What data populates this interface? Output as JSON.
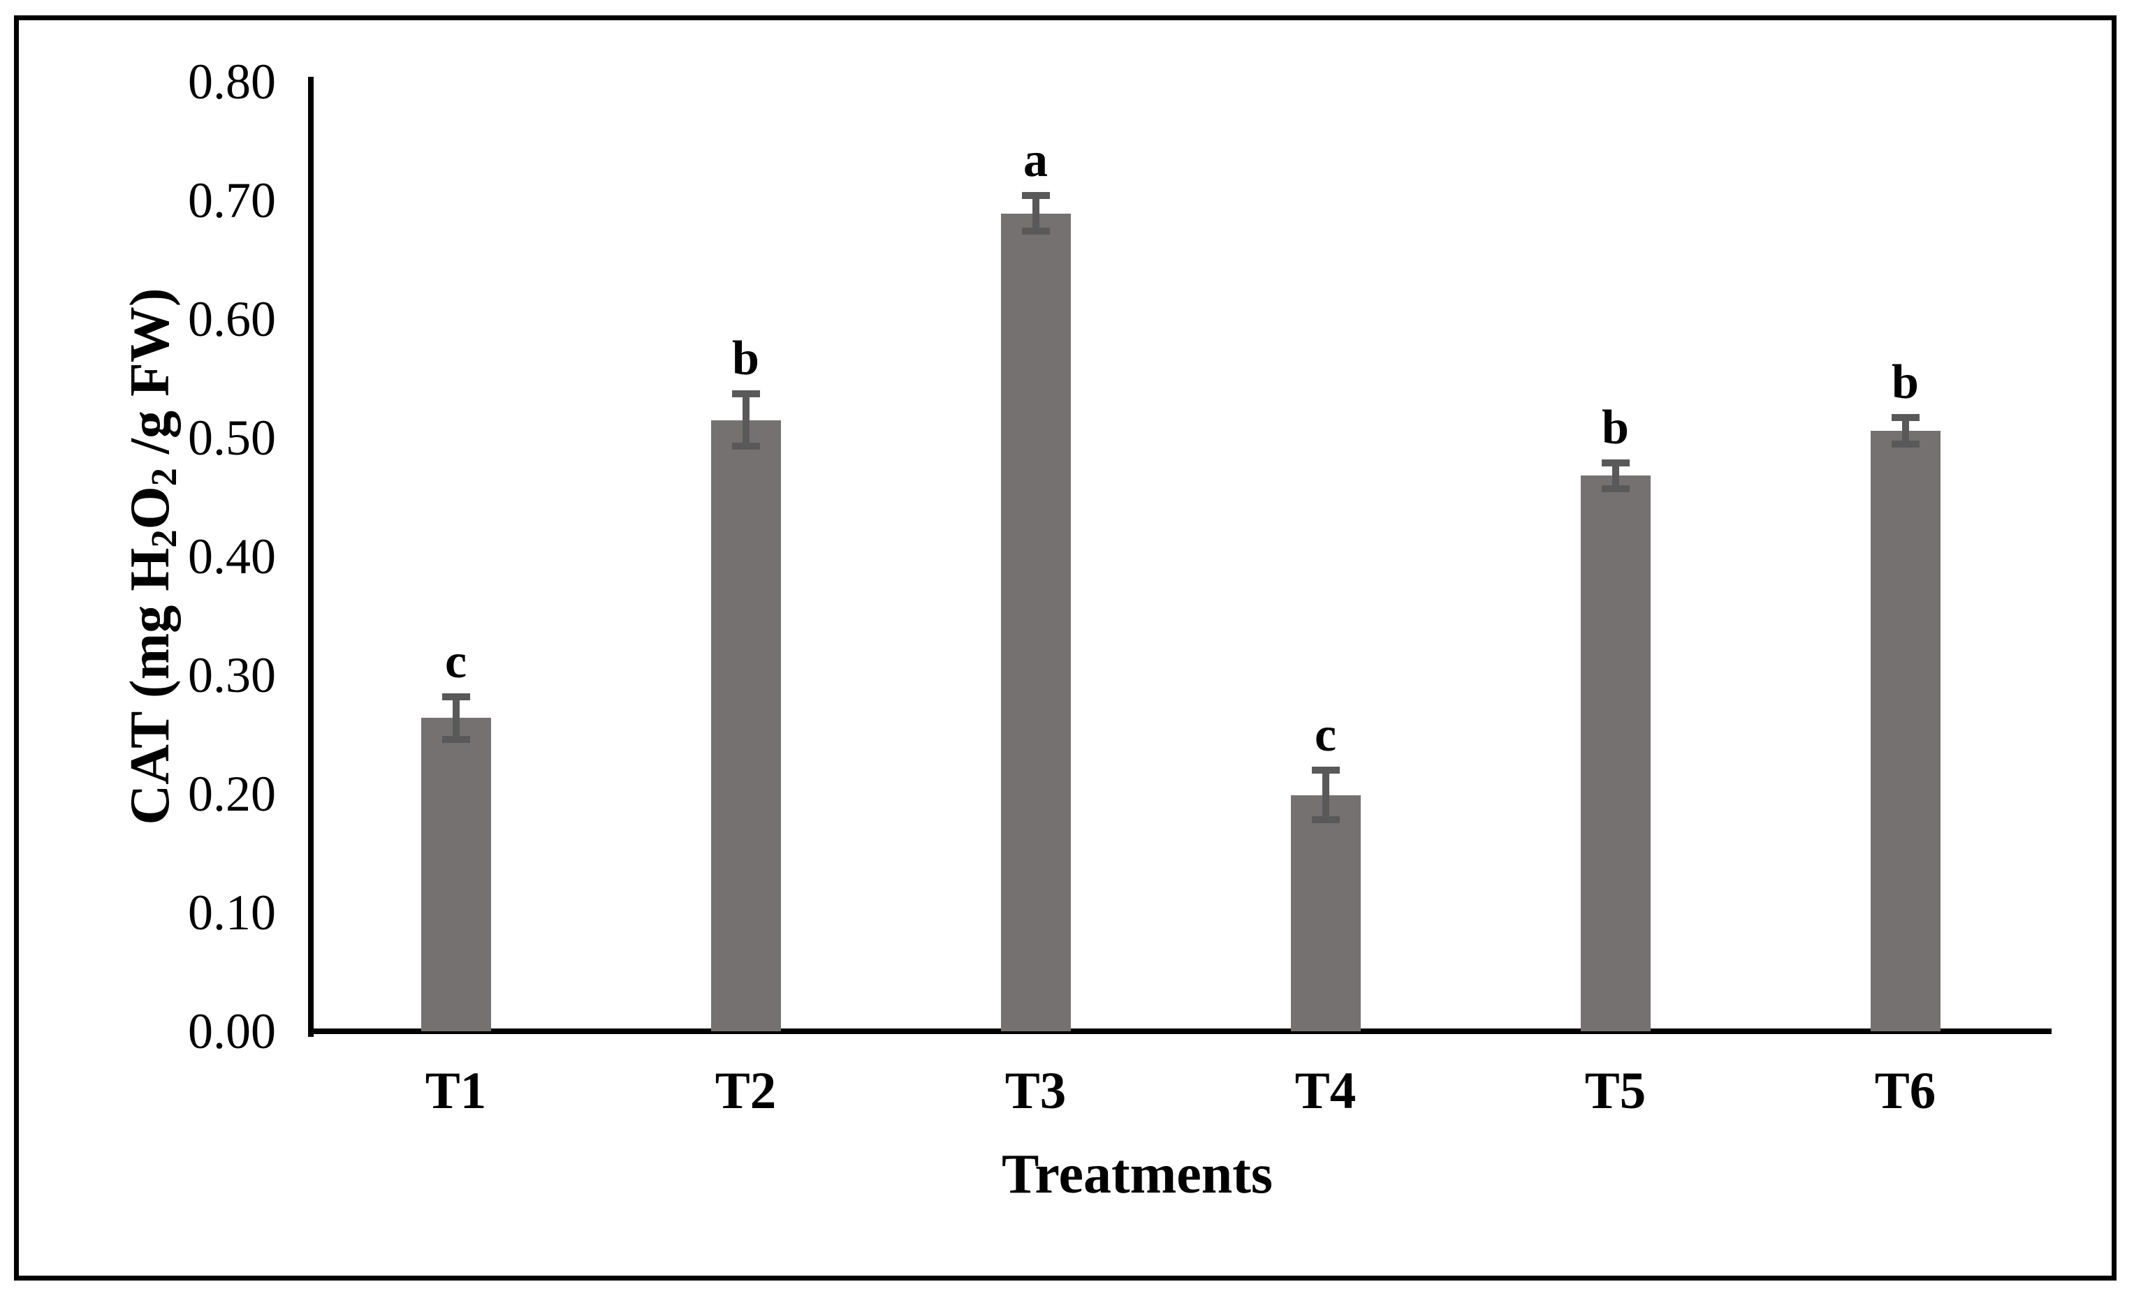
{
  "figure": {
    "y_axis_title": {
      "pre": "CAT (mg H",
      "sub1": "2",
      "mid": "O",
      "sub2": "2",
      "post": " /g FW)"
    },
    "x_axis_title": "Treatments"
  },
  "chart_data": {
    "type": "bar",
    "title": "",
    "xlabel": "Treatments",
    "ylabel": "CAT (mg H2O2 /g FW)",
    "categories": [
      "T1",
      "T2",
      "T3",
      "T4",
      "T5",
      "T6"
    ],
    "values": [
      0.264,
      0.515,
      0.689,
      0.199,
      0.468,
      0.506
    ],
    "error_bars": [
      0.018,
      0.022,
      0.015,
      0.021,
      0.011,
      0.011
    ],
    "significance_letters": [
      "c",
      "b",
      "a",
      "c",
      "b",
      "b"
    ],
    "ylim": [
      0,
      0.8
    ],
    "ytick_step": 0.1,
    "yticks": [
      "0.00",
      "0.10",
      "0.20",
      "0.30",
      "0.40",
      "0.50",
      "0.60",
      "0.70",
      "0.80"
    ],
    "grid": false,
    "legend": null,
    "bar_color": "#767171",
    "error_bar_color": "#595959",
    "axis_color": "#000000",
    "background_color": "#ffffff"
  }
}
